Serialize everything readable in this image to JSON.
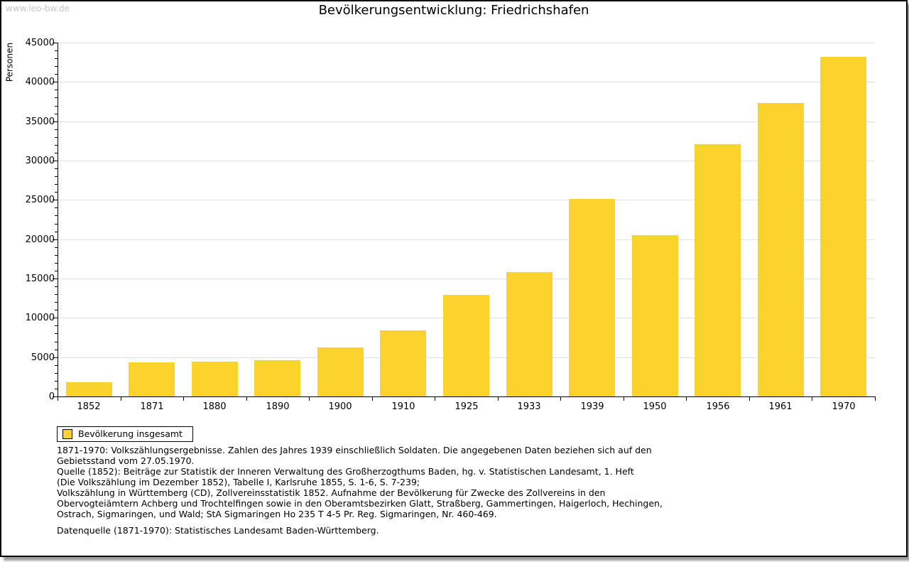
{
  "watermark": "www.leo-bw.de",
  "header": {
    "title": "Bevölkerungsentwicklung: Friedrichshafen"
  },
  "legend": {
    "label": "Bevölkerung insgesamt"
  },
  "colors": {
    "bar": "#fcd32d",
    "grid": "#e0e0e0",
    "axis": "#000000",
    "watermark": "#c6c6c6",
    "text": "#000000"
  },
  "chart_data": {
    "type": "bar",
    "title": "Bevölkerungsentwicklung: Friedrichshafen",
    "categories": [
      "1852",
      "1871",
      "1880",
      "1890",
      "1900",
      "1910",
      "1925",
      "1933",
      "1939",
      "1950",
      "1956",
      "1961",
      "1970"
    ],
    "values": [
      1800,
      4300,
      4400,
      4600,
      6200,
      8400,
      12900,
      15800,
      25100,
      20500,
      32100,
      37300,
      43200
    ],
    "series_name": "Bevölkerung insgesamt",
    "xlabel": "",
    "ylabel": "Personen",
    "ylim": [
      0,
      45000
    ],
    "ytick_step": 5000,
    "yminor_step": 1000,
    "grid": "horizontal-major",
    "legend_position": "bottom-left",
    "bar_color": "#fcd32d"
  },
  "footnotes": {
    "lines": [
      "1871-1970: Volkszählungsergebnisse. Zahlen des Jahres 1939 einschließlich Soldaten. Die angegebenen Daten beziehen sich auf den",
      "Gebietsstand vom 27.05.1970.",
      "Quelle (1852): Beiträge zur Statistik der Inneren Verwaltung des Großherzogthums Baden, hg. v. Statistischen Landesamt, 1. Heft",
      "(Die Volkszählung im Dezember 1852), Tabelle I, Karlsruhe 1855, S. 1-6, S. 7-239;",
      "Volkszählung in Württemberg (CD), Zollvereinsstatistik 1852. Aufnahme der Bevölkerung für Zwecke des Zollvereins in den",
      "Obervogteiämtern Achberg und Trochtelfingen sowie in den Oberamtsbezirken Glatt, Straßberg, Gammertingen, Haigerloch, Hechingen,",
      "Ostrach, Sigmaringen, und Wald; StA Sigmaringen Ho 235 T 4-5 Pr. Reg. Sigmaringen, Nr. 460-469."
    ],
    "datasource": "Datenquelle (1871-1970): Statistisches Landesamt Baden-Württemberg."
  }
}
